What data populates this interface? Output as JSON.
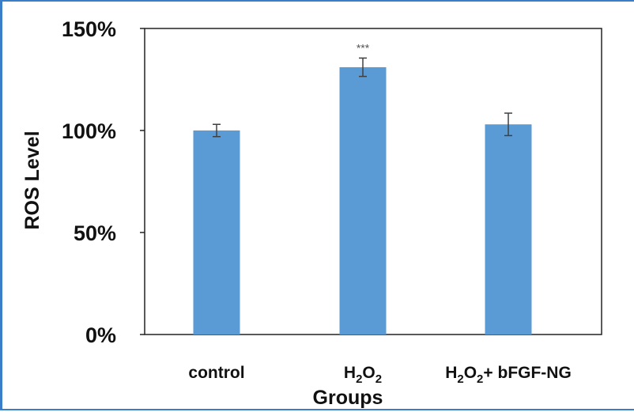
{
  "chart_data": {
    "type": "bar",
    "categories": [
      "control",
      "H2O2",
      "H2O2+ bFGF-NG"
    ],
    "category_labels": [
      {
        "parts": [
          {
            "text": "control",
            "sub": false
          }
        ]
      },
      {
        "parts": [
          {
            "text": "H",
            "sub": false
          },
          {
            "text": "2",
            "sub": true
          },
          {
            "text": "O",
            "sub": false
          },
          {
            "text": "2",
            "sub": true
          }
        ]
      },
      {
        "parts": [
          {
            "text": "H",
            "sub": false
          },
          {
            "text": "2",
            "sub": true
          },
          {
            "text": "O",
            "sub": false
          },
          {
            "text": "2",
            "sub": true
          },
          {
            "text": "+ bFGF-NG",
            "sub": false
          }
        ]
      }
    ],
    "values": [
      100,
      131,
      103
    ],
    "errors": [
      3,
      4.5,
      5.5
    ],
    "annotations": [
      {
        "category_index": 1,
        "text": "***"
      }
    ],
    "xlabel": "Groups",
    "ylabel": "ROS Level",
    "ylim": [
      0,
      150
    ],
    "yticks": [
      0,
      50,
      100,
      150
    ],
    "ytick_labels": [
      "0%",
      "50%",
      "100%",
      "150%"
    ],
    "bar_color": "#5b9bd5",
    "error_color": "#404040",
    "grid": false,
    "legend": false
  },
  "colors": {
    "frame": "#3a7dc9",
    "axis": "#222222",
    "text": "#111111"
  }
}
